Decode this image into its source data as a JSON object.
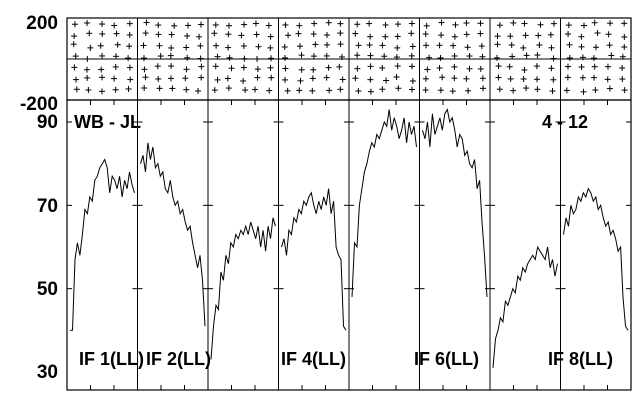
{
  "chart_data": {
    "type": "line",
    "title_left": "WB - JL",
    "title_right": "4 - 12",
    "phase_panel": {
      "ylim": [
        -200,
        200
      ],
      "yticks": [
        "200",
        "-200"
      ]
    },
    "amp_panel": {
      "ylim": [
        30,
        90
      ],
      "yticks": [
        "90",
        "70",
        "50",
        "30"
      ]
    },
    "panel_labels": [
      "IF 1(LL)",
      "IF 2(LL)",
      "IF 4(LL)",
      "IF 6(LL)",
      "IF 8(LL)"
    ],
    "series": [
      {
        "values": [
          40,
          40,
          57,
          61,
          58,
          63,
          69,
          68,
          72,
          71,
          76,
          77,
          79,
          80,
          81,
          79,
          73,
          77,
          76,
          74,
          77,
          72,
          76,
          74,
          78,
          75,
          73
        ]
      },
      {
        "values": [
          80,
          82,
          78,
          85,
          81,
          84,
          79,
          80,
          77,
          78,
          74,
          73,
          76,
          72,
          70,
          71,
          68,
          69,
          66,
          64,
          65,
          61,
          58,
          55,
          58,
          52,
          41
        ]
      },
      {
        "values": [
          33,
          41,
          46,
          45,
          54,
          52,
          58,
          56,
          61,
          60,
          63,
          62,
          64,
          63,
          65,
          63,
          66,
          64,
          62,
          65,
          60,
          64,
          59,
          65,
          62,
          67,
          65
        ]
      },
      {
        "values": [
          60,
          62,
          58,
          64,
          63,
          67,
          66,
          69,
          68,
          71,
          70,
          72,
          73,
          70,
          68,
          71,
          69,
          72,
          70,
          74,
          68,
          71,
          60,
          58,
          57,
          41,
          40
        ]
      },
      {
        "values": [
          48,
          61,
          60,
          70,
          74,
          78,
          80,
          83,
          85,
          84,
          87,
          86,
          88,
          90,
          89,
          93,
          88,
          91,
          89,
          86,
          88,
          91,
          85,
          90,
          87,
          89,
          84
        ]
      },
      {
        "values": [
          88,
          86,
          90,
          84,
          92,
          87,
          89,
          91,
          88,
          92,
          93,
          90,
          91,
          88,
          84,
          87,
          86,
          82,
          83,
          80,
          79,
          81,
          74,
          76,
          66,
          58,
          48
        ]
      },
      {
        "values": [
          31,
          38,
          40,
          43,
          42,
          47,
          46,
          48,
          50,
          49,
          53,
          52,
          55,
          54,
          56,
          57,
          58,
          57,
          60,
          59,
          58,
          57,
          60,
          55,
          57,
          53,
          56
        ]
      },
      {
        "values": [
          63,
          67,
          65,
          70,
          68,
          69,
          72,
          71,
          73,
          72,
          74,
          73,
          71,
          72,
          69,
          70,
          67,
          65,
          66,
          63,
          64,
          62,
          59,
          60,
          48,
          41,
          40
        ]
      }
    ]
  }
}
